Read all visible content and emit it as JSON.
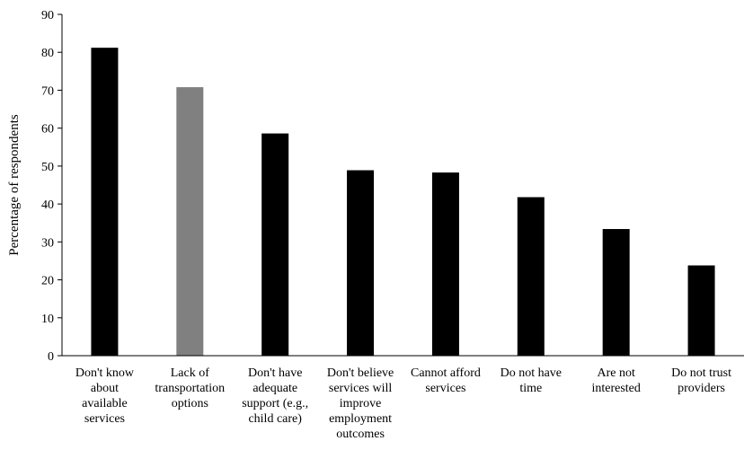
{
  "chart_data": {
    "type": "bar",
    "title": "",
    "xlabel": "",
    "ylabel": "Percentage of respondents",
    "ylim": [
      0,
      90
    ],
    "yticks": [
      0,
      10,
      20,
      30,
      40,
      50,
      60,
      70,
      80,
      90
    ],
    "grid": false,
    "legend": "none",
    "categories": [
      [
        "Don't know",
        "about",
        "available",
        "services"
      ],
      [
        "Lack of",
        "transportation",
        "options"
      ],
      [
        "Don't have",
        "adequate",
        "support (e.g.,",
        "child care)"
      ],
      [
        "Don't believe",
        "services will",
        "improve",
        "employment",
        "outcomes"
      ],
      [
        "Cannot afford",
        "services"
      ],
      [
        "Do not have",
        "time"
      ],
      [
        "Are not",
        "interested"
      ],
      [
        "Do not trust",
        "providers"
      ]
    ],
    "values": [
      81.2,
      70.8,
      58.6,
      48.9,
      48.3,
      41.8,
      33.4,
      23.8
    ],
    "colors": [
      "#000000",
      "#808080",
      "#000000",
      "#000000",
      "#000000",
      "#000000",
      "#000000",
      "#000000"
    ]
  }
}
